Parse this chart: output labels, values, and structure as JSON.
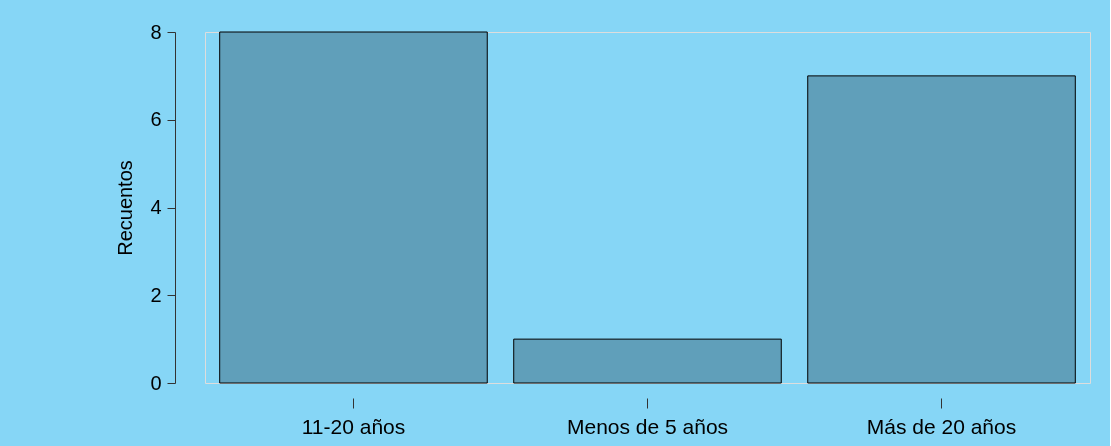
{
  "chart_data": {
    "type": "bar",
    "ylabel": "Recuentos",
    "categories": [
      "11-20 años",
      "Menos de 5 años",
      "Más de 20 años"
    ],
    "values": [
      8,
      1,
      7
    ],
    "color": "#609fba",
    "ylim": [
      0,
      8
    ],
    "yticks": [
      0,
      2,
      4,
      6,
      8
    ],
    "grid": false
  }
}
